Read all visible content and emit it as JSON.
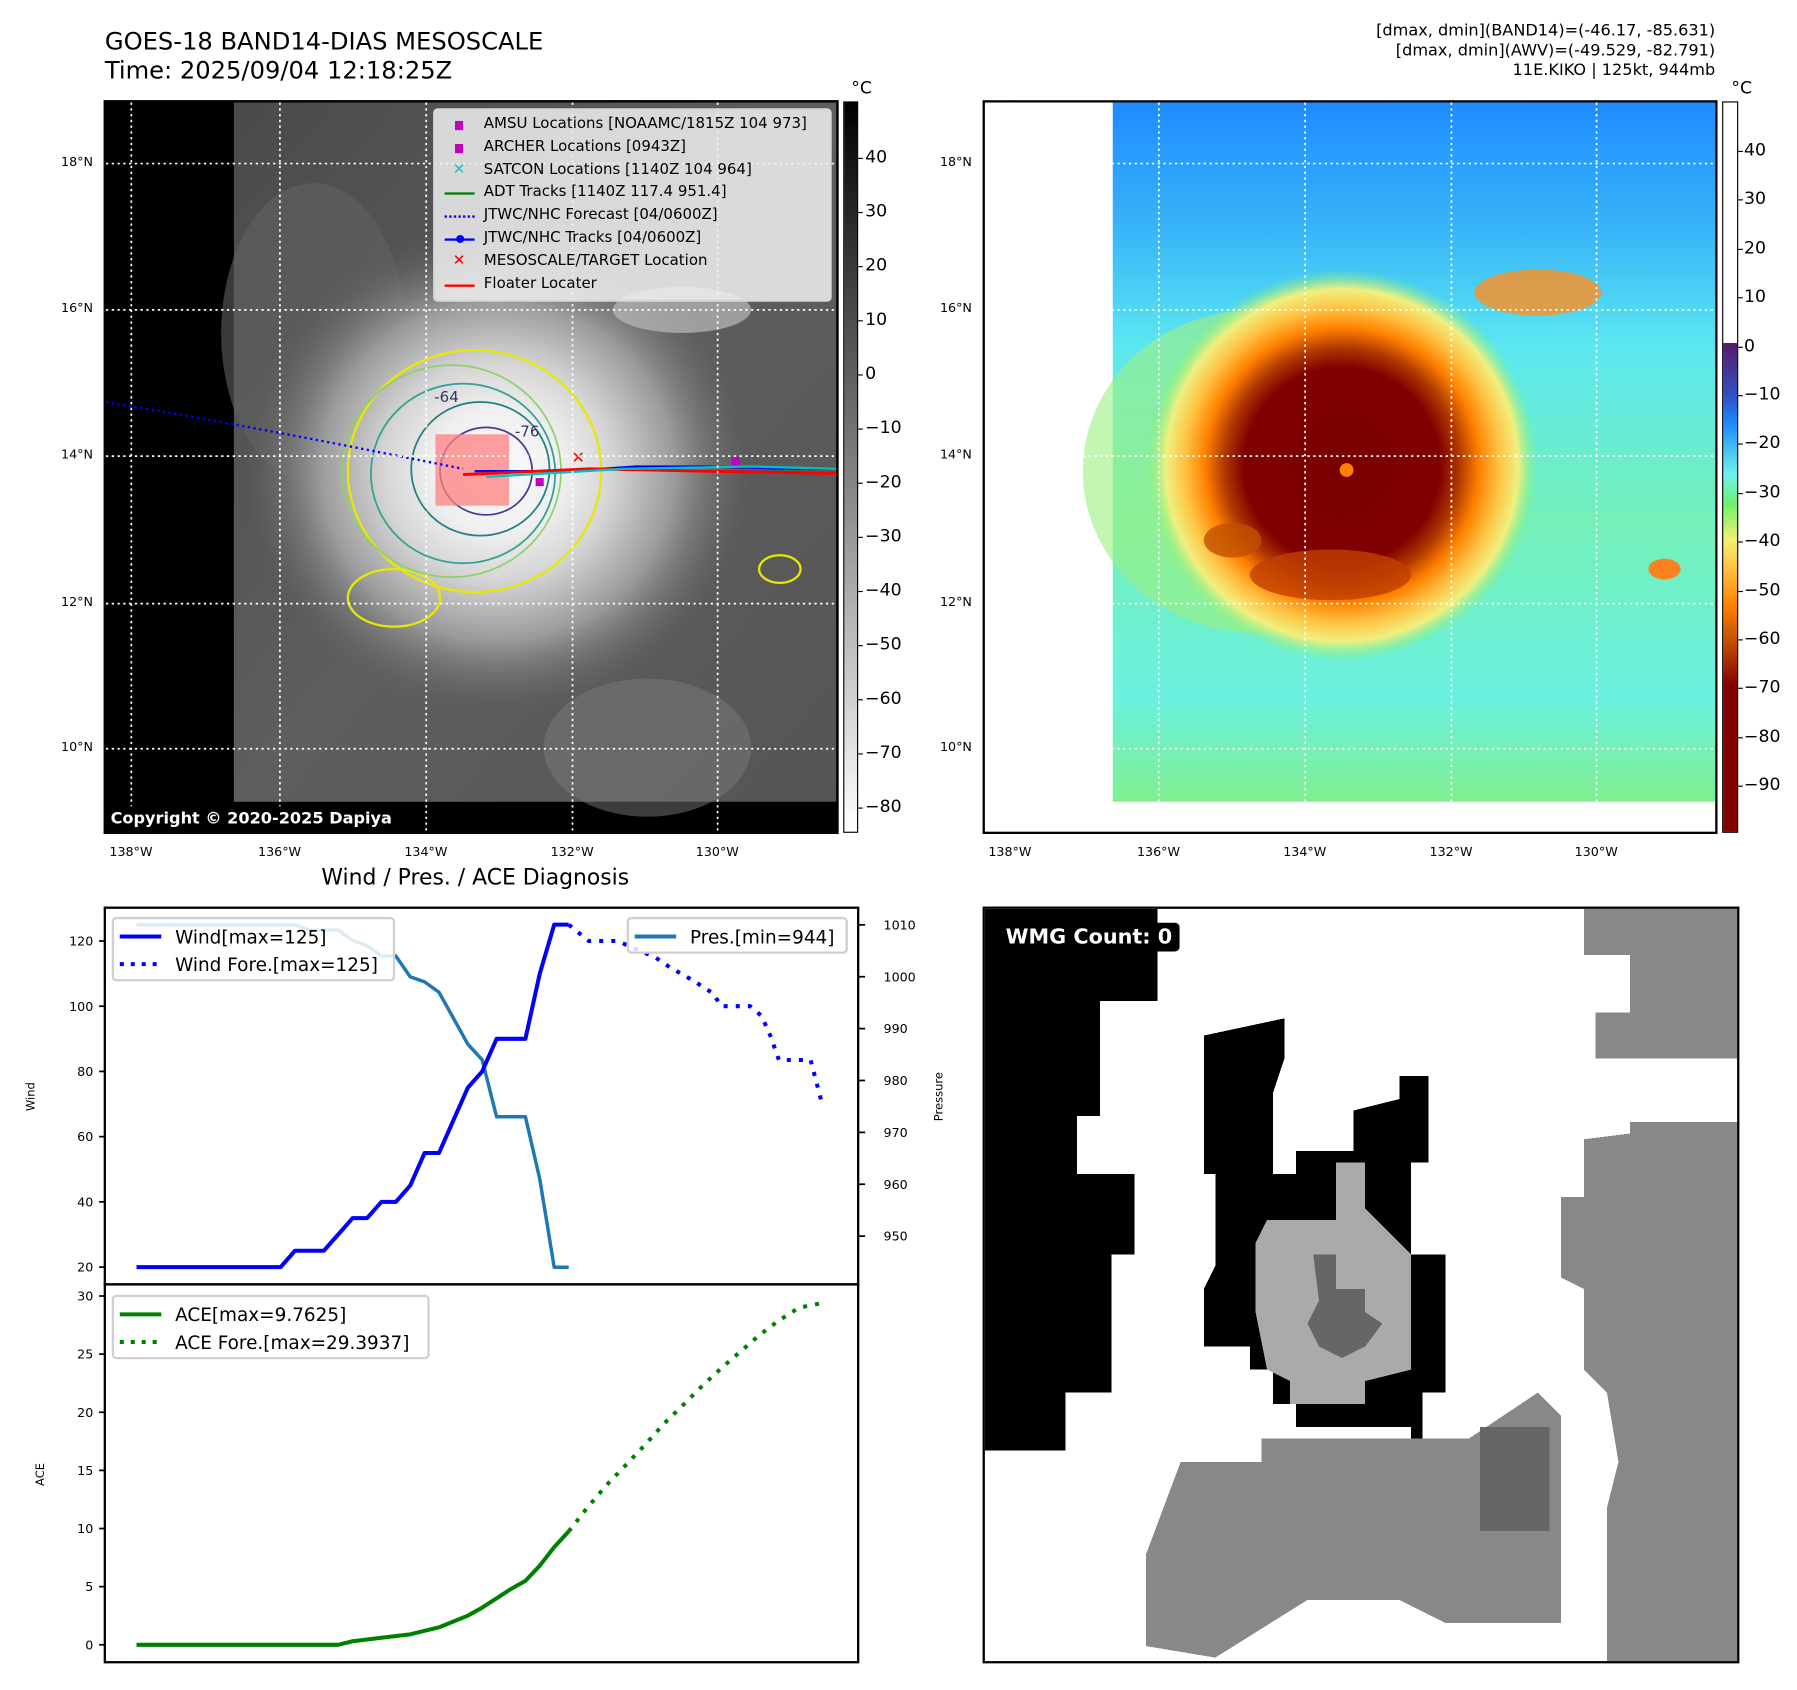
{
  "header": {
    "title": "GOES-18 BAND14-DIAS MESOSCALE",
    "time": "Time: 2025/09/04 12:18:25Z",
    "info_line1": "[dmax, dmin](BAND14)=(-46.17, -85.631)",
    "info_line2": "[dmax, dmin](AWV)=(-49.529, -82.791)",
    "info_line3": "11E.KIKO | 125kt, 944mb"
  },
  "map": {
    "lat_labels": [
      "18°N",
      "16°N",
      "14°N",
      "12°N",
      "10°N"
    ],
    "lon_labels": [
      "138°W",
      "136°W",
      "134°W",
      "132°W",
      "130°W"
    ],
    "copyright": "Copyright © 2020-2025 Dapiya",
    "unit": "°C",
    "contour_labels": [
      "-64",
      "-76",
      "-76"
    ],
    "legend": [
      {
        "label": "AMSU Locations [NOAAMC/1815Z 104 973]",
        "icon": "square-marker",
        "color": "#c000c0"
      },
      {
        "label": "ARCHER Locations [0943Z]",
        "icon": "square-marker",
        "color": "#c000c0"
      },
      {
        "label": "SATCON Locations [1140Z 104 964]",
        "icon": "x-marker",
        "color": "#20c0c0"
      },
      {
        "label": "ADT Tracks [1140Z 117.4 951.4]",
        "icon": "solid-line",
        "color": "#008000"
      },
      {
        "label": "JTWC/NHC Forecast [04/0600Z]",
        "icon": "dotted-line",
        "color": "#0000ff"
      },
      {
        "label": "JTWC/NHC Tracks [04/0600Z]",
        "icon": "line-dot",
        "color": "#0000ff"
      },
      {
        "label": "MESOSCALE/TARGET Location",
        "icon": "x-marker",
        "color": "#ff0000"
      },
      {
        "label": "Floater Locater",
        "icon": "solid-line",
        "color": "#ff0000"
      }
    ],
    "colorbar_left_ticks": [
      "40",
      "30",
      "20",
      "10",
      "0",
      "−10",
      "−20",
      "−30",
      "−40",
      "−50",
      "−60",
      "−70",
      "−80"
    ],
    "colorbar_right_ticks": [
      "40",
      "30",
      "20",
      "10",
      "0",
      "−10",
      "−20",
      "−30",
      "−40",
      "−50",
      "−60",
      "−70",
      "−80",
      "−90"
    ]
  },
  "diagnosis_title": "Wind / Pres. / ACE Diagnosis",
  "wmg": {
    "label": "WMG Count: 0"
  },
  "chart_data": [
    {
      "type": "line",
      "title": "Wind / Pres. / ACE Diagnosis",
      "ylabel": "Wind",
      "y2label": "Pressure",
      "ylim": [
        14.7,
        130.2
      ],
      "y2lim": [
        940.7,
        1013.3
      ],
      "xlim": [
        -2.2,
        50.1
      ],
      "yticks": [
        20,
        40,
        60,
        80,
        100,
        120
      ],
      "y2ticks": [
        950,
        960,
        970,
        980,
        990,
        1000,
        1010
      ],
      "series": [
        {
          "name": "Wind[max=125]",
          "color": "#0000ff",
          "style": "solid",
          "axis": "left",
          "x": [
            0,
            1,
            2,
            3,
            4,
            5,
            6,
            7,
            8,
            9,
            10,
            11,
            12,
            13,
            14,
            15,
            16,
            17,
            18,
            19,
            20,
            21,
            22,
            23,
            24,
            25,
            26,
            27,
            28,
            29,
            30
          ],
          "values": [
            20,
            20,
            20,
            20,
            20,
            20,
            20,
            20,
            20,
            20,
            20,
            25,
            25,
            25,
            30,
            35,
            35,
            40,
            40,
            45,
            55,
            55,
            65,
            75,
            80,
            90,
            90,
            90,
            110,
            125,
            125
          ]
        },
        {
          "name": "Wind Fore.[max=125]",
          "color": "#0000ff",
          "style": "dotted",
          "axis": "left",
          "x": [
            30,
            31.4,
            33.4,
            34.4,
            36,
            37,
            38.6,
            40,
            40.6,
            42.6,
            43.4,
            44,
            44.6,
            46.8,
            47.6
          ],
          "values": [
            125,
            120,
            120,
            118,
            115,
            112,
            108,
            104,
            100,
            100,
            97,
            91,
            83.5,
            83.5,
            70
          ]
        },
        {
          "name": "Pres.[min=944]",
          "color": "#1f77b4",
          "style": "solid",
          "axis": "right",
          "x": [
            0,
            1,
            2,
            3,
            4,
            5,
            6,
            7,
            8,
            9,
            10,
            11,
            12,
            13,
            14,
            15,
            16,
            17,
            18,
            19,
            20,
            21,
            22,
            23,
            24,
            25,
            26,
            27,
            28,
            29,
            30
          ],
          "values": [
            1010,
            1010,
            1010,
            1010,
            1010,
            1010,
            1010,
            1010,
            1010,
            1010,
            1010,
            1010,
            1009,
            1009,
            1009,
            1007,
            1006,
            1004,
            1004,
            1000,
            999,
            997,
            992,
            987,
            984,
            973,
            973,
            973,
            961,
            944,
            944
          ]
        }
      ]
    },
    {
      "type": "line",
      "ylabel": "ACE",
      "ylim": [
        -1.5,
        31
      ],
      "xlim": [
        -2.2,
        50.1
      ],
      "yticks": [
        0,
        5,
        10,
        15,
        20,
        25,
        30
      ],
      "series": [
        {
          "name": "ACE[max=9.7625]",
          "color": "#008000",
          "style": "solid",
          "x": [
            0,
            2,
            4,
            6,
            8,
            10,
            12,
            14,
            15,
            17,
            19,
            21,
            22,
            23,
            24,
            25,
            26,
            27,
            28,
            29,
            30
          ],
          "values": [
            0,
            0,
            0,
            0,
            0,
            0,
            0,
            0,
            0.3,
            0.6,
            0.9,
            1.5,
            2,
            2.5,
            3.2,
            4,
            4.8,
            5.5,
            6.8,
            8.4,
            9.76
          ]
        },
        {
          "name": "ACE Fore.[max=29.3937]",
          "color": "#008000",
          "style": "dotted",
          "x": [
            30,
            31.3,
            32.6,
            34,
            35.3,
            36.6,
            38,
            39.3,
            40.6,
            42,
            43.3,
            44.6,
            46,
            47.6
          ],
          "values": [
            9.76,
            11.8,
            13.7,
            15.5,
            17.2,
            19,
            20.7,
            22.3,
            23.8,
            25.3,
            26.7,
            27.9,
            29,
            29.39
          ]
        }
      ]
    }
  ]
}
